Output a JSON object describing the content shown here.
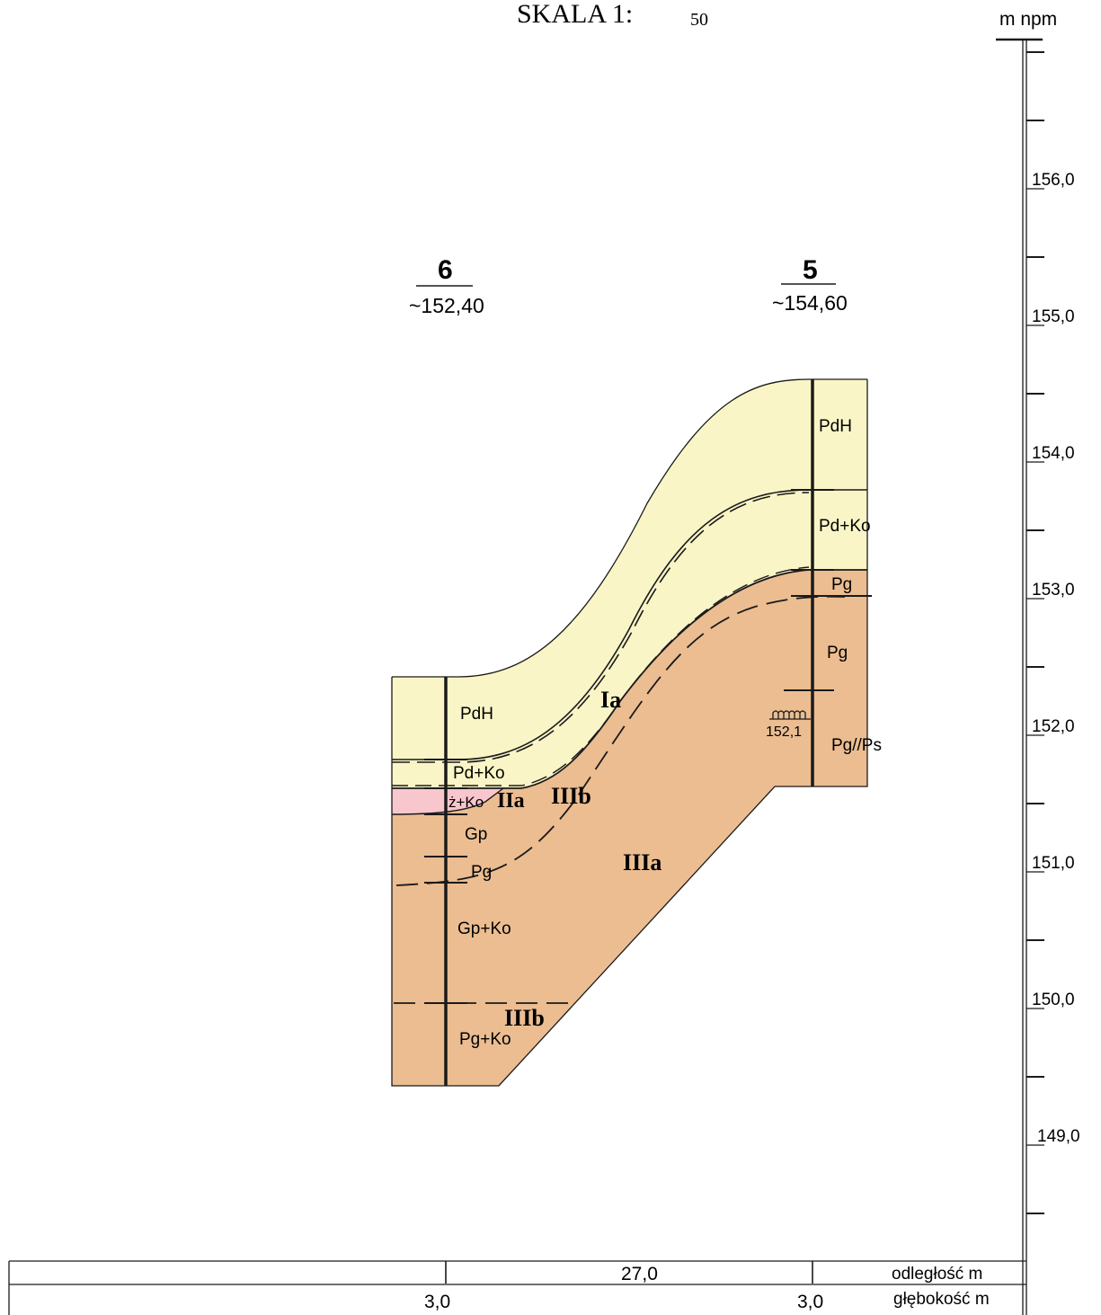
{
  "title": {
    "prefix": "SKALA 1:",
    "denominator": "50"
  },
  "scale": {
    "unit_label": "m npm",
    "ticks": [
      "156,0",
      "155,0",
      "154,0",
      "153,0",
      "152,0",
      "151,0",
      "150,0",
      "149,0"
    ]
  },
  "boreholes": [
    {
      "number": "6",
      "elevation": "~152,40",
      "layers": [
        "PdH",
        "Pd+Ko",
        "ż+Ko",
        "Gp",
        "Pg",
        "Gp+Ko",
        "Pg+Ko"
      ]
    },
    {
      "number": "5",
      "elevation": "~154,60",
      "layers": [
        "PdH",
        "Pd+Ko",
        "Pg",
        "Pg",
        "Pg//Ps"
      ],
      "water_level": "152,1"
    }
  ],
  "units": {
    "Ia": "Ia",
    "IIa": "IIa",
    "IIIb_upper": "IIIb",
    "IIIa": "IIIa",
    "IIIb_lower": "IIIb"
  },
  "bottom_table": {
    "distance_label": "odległość  m",
    "depth_label": "głębokość m",
    "distance_value": "27,0",
    "depth_left": "3,0",
    "depth_right": "3,0"
  },
  "colors": {
    "light_soil": "#f9f5c6",
    "dark_soil": "#ebbd91",
    "pink_layer": "#f8c6cd",
    "line": "#1a1a1a"
  }
}
